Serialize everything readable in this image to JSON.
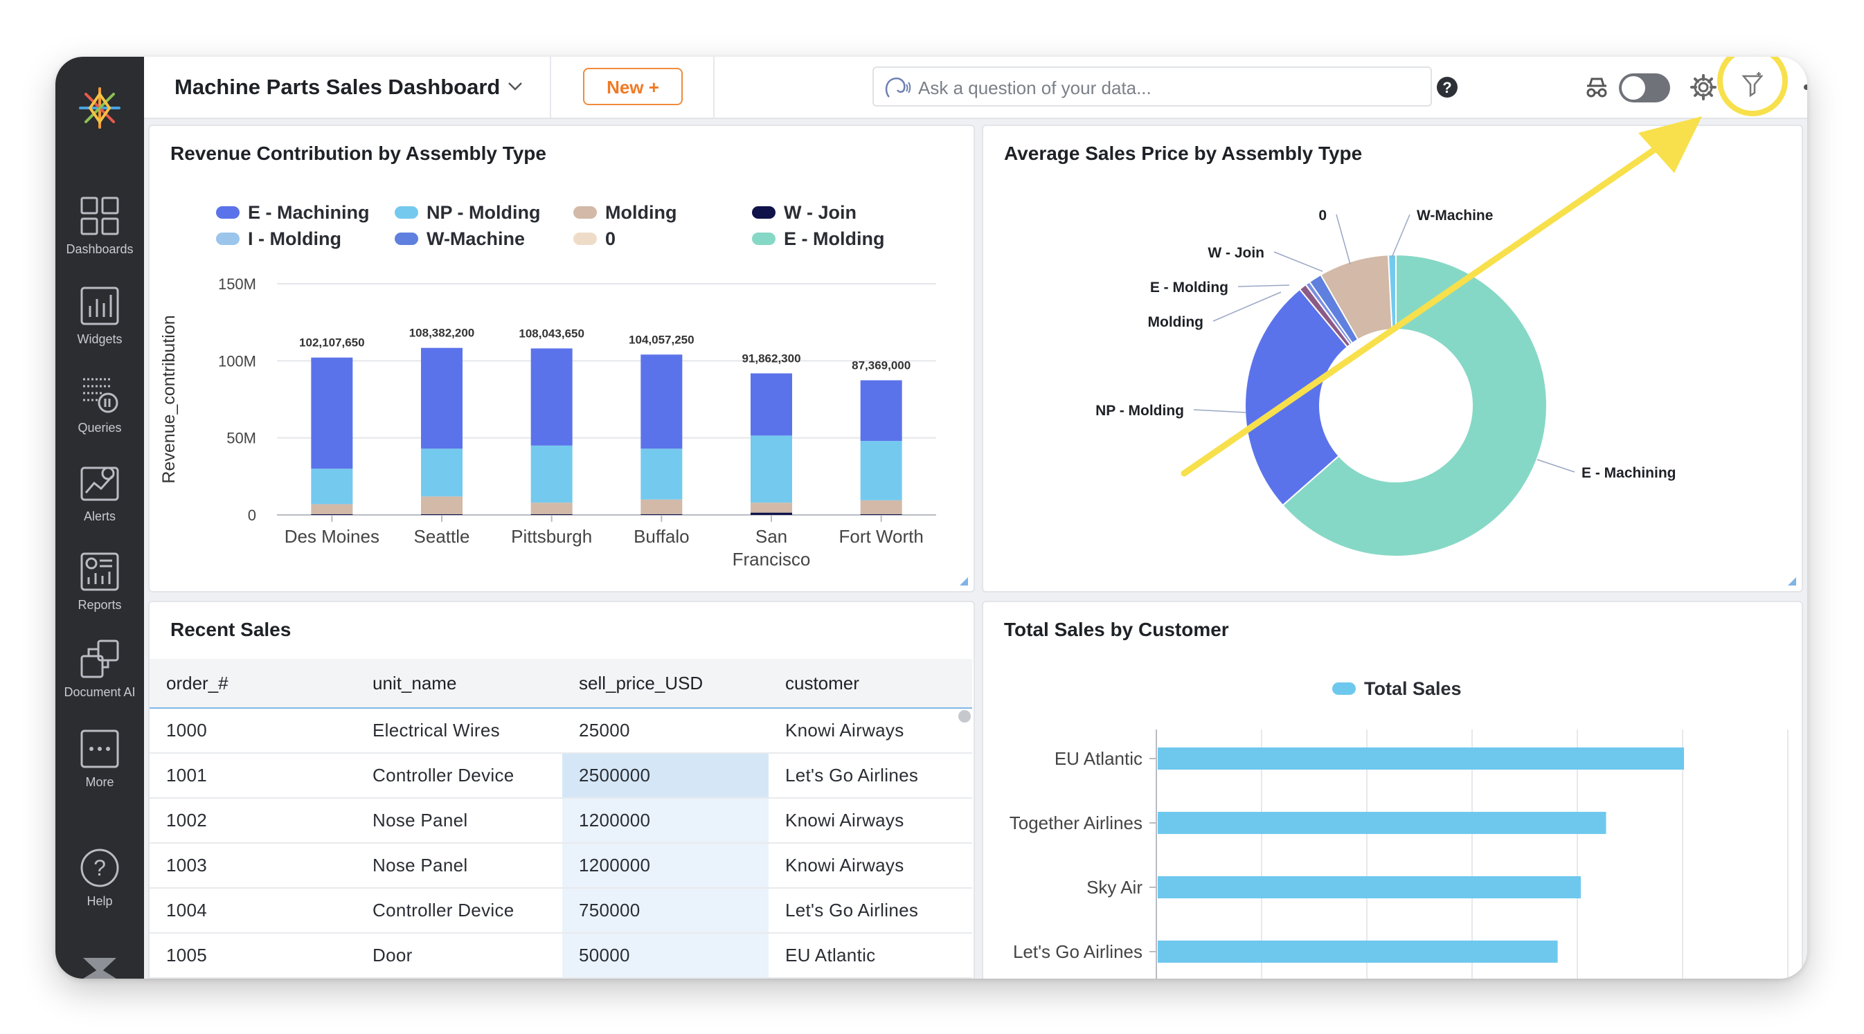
{
  "app": {
    "dashboard_title": "Machine Parts Sales Dashboard",
    "new_button": "New +",
    "search_placeholder": "Ask a question of your data..."
  },
  "sidebar": {
    "items": [
      {
        "label": "Dashboards",
        "icon": "dashboards-grid-icon"
      },
      {
        "label": "Widgets",
        "icon": "widgets-chart-icon"
      },
      {
        "label": "Queries",
        "icon": "queries-icon"
      },
      {
        "label": "Alerts",
        "icon": "alerts-icon"
      },
      {
        "label": "Reports",
        "icon": "reports-icon"
      },
      {
        "label": "Document AI",
        "icon": "document-ai-icon"
      },
      {
        "label": "More",
        "icon": "more-dots-icon"
      },
      {
        "label": "Help",
        "icon": "help-question-icon"
      }
    ]
  },
  "colors": {
    "accent_orange": "#f07a25",
    "highlight_yellow": "#f7e04b",
    "e_machining": "#5b73ea",
    "np_molding": "#74c9ee",
    "molding": "#d2b9a8",
    "w_join": "#10124a",
    "i_molding": "#9cc5ec",
    "w_machine": "#5f80de",
    "zero": "#efdcc8",
    "e_molding": "#86d8c6"
  },
  "panels": {
    "revenue": {
      "title": "Revenue Contribution by Assembly Type",
      "legend": [
        "E - Machining",
        "NP - Molding",
        "Molding",
        "W - Join",
        "I - Molding",
        "W-Machine",
        "0",
        "E - Molding"
      ]
    },
    "avg_price": {
      "title": "Average Sales Price by Assembly Type"
    },
    "recent_sales": {
      "title": "Recent Sales",
      "columns": [
        "order_#",
        "unit_name",
        "sell_price_USD",
        "customer"
      ],
      "rows": [
        [
          "1000",
          "Electrical Wires",
          "25000",
          "Knowi Airways"
        ],
        [
          "1001",
          "Controller Device",
          "2500000",
          "Let's Go Airlines"
        ],
        [
          "1002",
          "Nose Panel",
          "1200000",
          "Knowi Airways"
        ],
        [
          "1003",
          "Nose Panel",
          "1200000",
          "Knowi Airways"
        ],
        [
          "1004",
          "Controller Device",
          "750000",
          "Let's Go Airlines"
        ],
        [
          "1005",
          "Door",
          "50000",
          "EU Atlantic"
        ]
      ]
    },
    "total_sales": {
      "title": "Total Sales by Customer",
      "legend": "Total Sales"
    }
  },
  "chart_data": [
    {
      "type": "bar",
      "stacked": true,
      "title": "Revenue Contribution by Assembly Type",
      "ylabel": "Revenue_contribution",
      "ylim": [
        0,
        150000000
      ],
      "yticks": [
        "0",
        "50M",
        "100M",
        "150M"
      ],
      "categories": [
        "Des Moines",
        "Seattle",
        "Pittsburgh",
        "Buffalo",
        "San Francisco",
        "Fort Worth"
      ],
      "totals": [
        "102,107,650",
        "108,382,200",
        "108,043,650",
        "104,057,250",
        "91,862,300",
        "87,369,000"
      ],
      "series": [
        {
          "name": "W - Join",
          "values": [
            500000,
            500000,
            500000,
            500000,
            1500000,
            500000
          ]
        },
        {
          "name": "Molding",
          "values": [
            6500000,
            11500000,
            7500000,
            9500000,
            6500000,
            9000000
          ]
        },
        {
          "name": "NP - Molding",
          "values": [
            23000000,
            31000000,
            37000000,
            33000000,
            43500000,
            38500000
          ]
        },
        {
          "name": "E - Machining",
          "values": [
            72107650,
            65382200,
            63043650,
            61057250,
            40362300,
            39369000
          ]
        }
      ],
      "legend_position": "top",
      "grid": true
    },
    {
      "type": "pie",
      "donut": true,
      "title": "Average Sales Price by Assembly Type",
      "slices": [
        {
          "name": "E - Machining",
          "value": 63.5
        },
        {
          "name": "NP - Molding",
          "value": 25.5
        },
        {
          "name": "Molding",
          "value": 0.8
        },
        {
          "name": "E - Molding",
          "value": 0.5
        },
        {
          "name": "W - Join",
          "value": 1.4
        },
        {
          "name": "0",
          "value": 7.5
        },
        {
          "name": "W-Machine",
          "value": 0.8
        }
      ]
    },
    {
      "type": "bar",
      "orientation": "horizontal",
      "title": "Total Sales by Customer",
      "series": [
        {
          "name": "Total Sales",
          "values": [
            2500000,
            2130000,
            2010000,
            1900000
          ]
        }
      ],
      "categories": [
        "EU Atlantic",
        "Together Airlines",
        "Sky Air",
        "Let's Go Airlines"
      ],
      "xlim": [
        0,
        3000000
      ],
      "grid": true,
      "legend_position": "top"
    }
  ]
}
